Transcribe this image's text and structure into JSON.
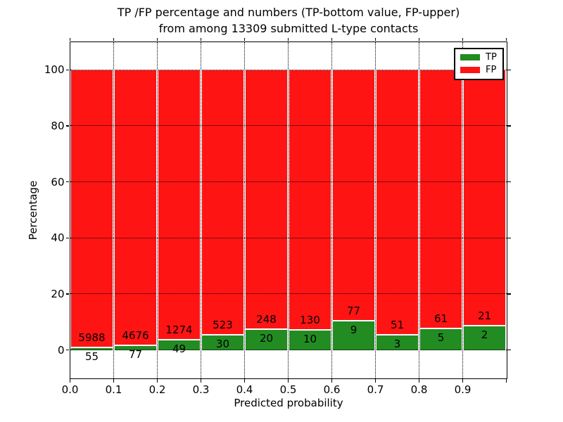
{
  "chart_data": {
    "type": "bar",
    "stacked": true,
    "title_line1": "TP /FP percentage and numbers (TP-bottom value, FP-upper)",
    "title_line2": "from among 13309 submitted L-type contacts",
    "xlabel": "Predicted probability",
    "ylabel": "Percentage",
    "xlim": [
      0.0,
      1.0
    ],
    "ylim": [
      -10,
      110
    ],
    "grid": true,
    "grid_style": "dotted",
    "y_ticks": [
      0,
      20,
      40,
      60,
      80,
      100
    ],
    "y_tick_labels": [
      "0",
      "20",
      "40",
      "60",
      "80",
      "100"
    ],
    "x_ticks": [
      0.0,
      0.1,
      0.2,
      0.3,
      0.4,
      0.5,
      0.6,
      0.7,
      0.8,
      0.9
    ],
    "x_tick_labels": [
      "0.0",
      "0.1",
      "0.2",
      "0.3",
      "0.4",
      "0.5",
      "0.6",
      "0.7",
      "0.8",
      "0.9"
    ],
    "note": "Each bin stacked to 100%: TP percentage on bottom (green), FP percentage on top (red). Printed numbers are raw counts: FP count above the green top edge, TP count below it.",
    "bins": [
      {
        "range": "0.0-0.1",
        "tp": 55,
        "fp": 5988
      },
      {
        "range": "0.1-0.2",
        "tp": 77,
        "fp": 4676
      },
      {
        "range": "0.2-0.3",
        "tp": 49,
        "fp": 1274
      },
      {
        "range": "0.3-0.4",
        "tp": 30,
        "fp": 523
      },
      {
        "range": "0.4-0.5",
        "tp": 20,
        "fp": 248
      },
      {
        "range": "0.5-0.6",
        "tp": 10,
        "fp": 130
      },
      {
        "range": "0.6-0.7",
        "tp": 9,
        "fp": 77
      },
      {
        "range": "0.7-0.8",
        "tp": 3,
        "fp": 51
      },
      {
        "range": "0.8-0.9",
        "tp": 5,
        "fp": 61
      },
      {
        "range": "0.9-1.0",
        "tp": 2,
        "fp": 21
      }
    ],
    "series": [
      {
        "name": "TP",
        "color": "#228b22"
      },
      {
        "name": "FP",
        "color": "#ff1414"
      }
    ],
    "legend": {
      "position": "upper right",
      "entries": [
        "TP",
        "FP"
      ]
    },
    "colors": {
      "tp": "#228b22",
      "fp": "#ff1414",
      "bar_edge": "#ffffff",
      "grid": "#000000"
    }
  }
}
